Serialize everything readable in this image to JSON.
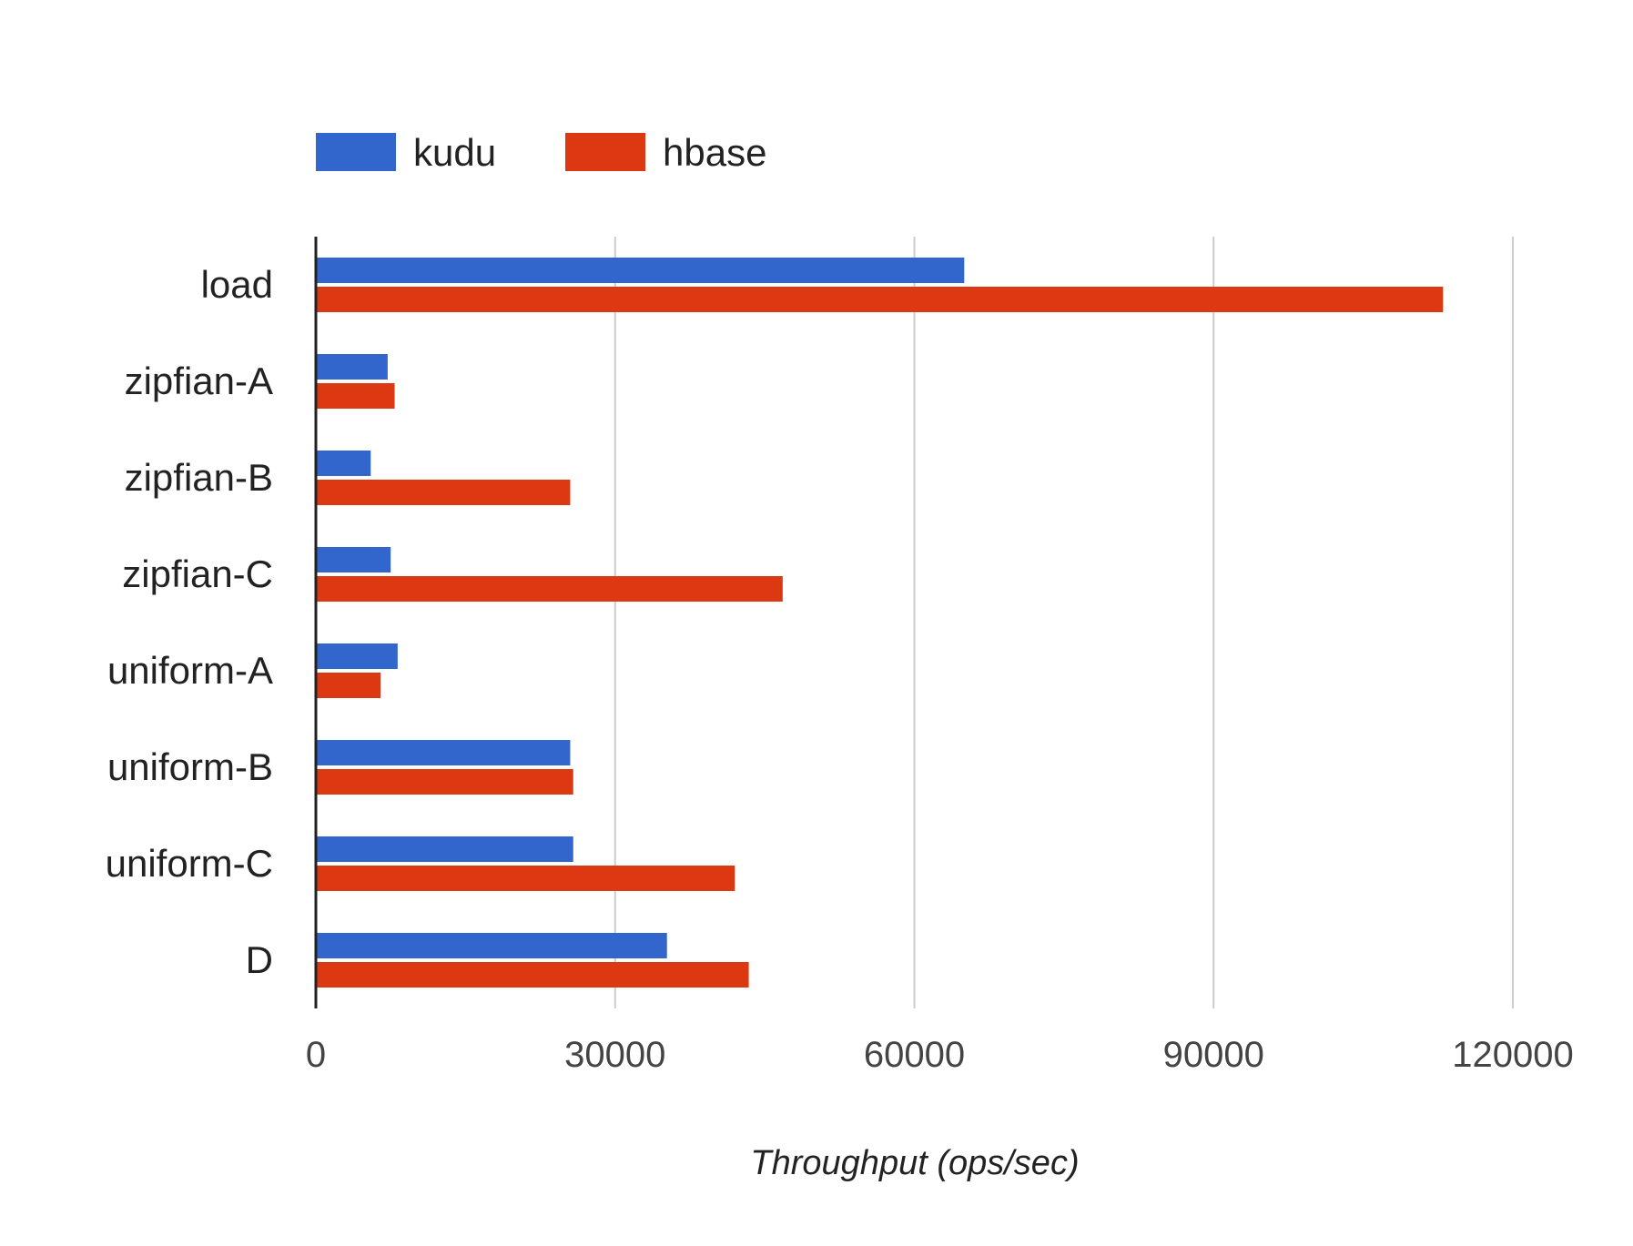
{
  "chart_data": {
    "type": "bar",
    "orientation": "horizontal",
    "title": "",
    "xlabel": "Throughput (ops/sec)",
    "ylabel": "",
    "xlim": [
      0,
      120000
    ],
    "x_ticks": [
      "0",
      "30000",
      "60000",
      "90000",
      "120000"
    ],
    "grid": true,
    "legend_position": "top-left",
    "categories": [
      "load",
      "zipfian-A",
      "zipfian-B",
      "zipfian-C",
      "uniform-A",
      "uniform-B",
      "uniform-C",
      "D"
    ],
    "series": [
      {
        "name": "kudu",
        "color": "#3366cc",
        "values": [
          65000,
          7200,
          5500,
          7500,
          8200,
          25500,
          25800,
          35200
        ]
      },
      {
        "name": "hbase",
        "color": "#dc3912",
        "values": [
          113000,
          7900,
          25500,
          46800,
          6500,
          25800,
          42000,
          43400
        ]
      }
    ]
  },
  "colors": {
    "gridline": "#cccccc",
    "axis": "#222222"
  }
}
